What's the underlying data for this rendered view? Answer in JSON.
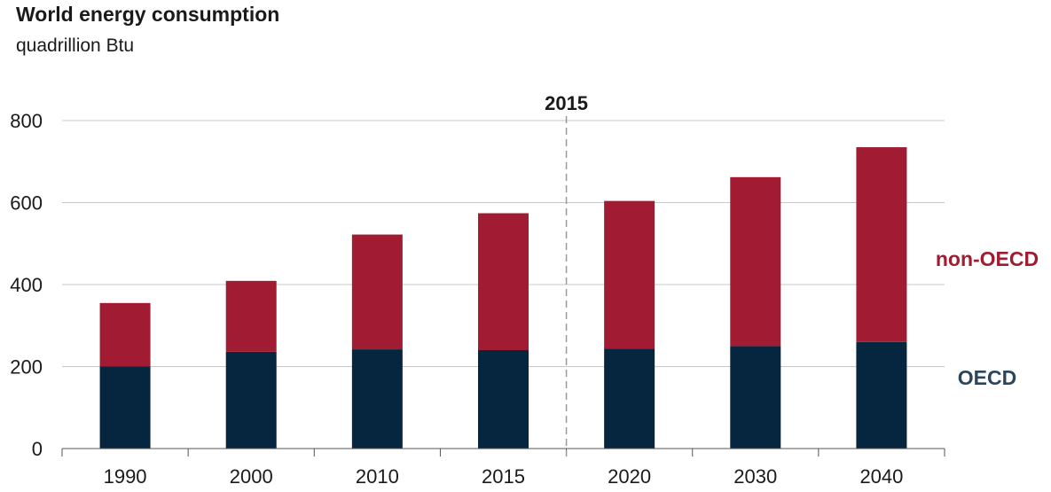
{
  "chart_data": {
    "type": "bar",
    "stacked": true,
    "title": "World energy consumption",
    "subtitle": "quadrillion Btu",
    "categories": [
      "1990",
      "2000",
      "2010",
      "2015",
      "2020",
      "2030",
      "2040"
    ],
    "series": [
      {
        "name": "OECD",
        "color": "#05263e",
        "values": [
          200,
          236,
          242,
          240,
          244,
          250,
          260
        ]
      },
      {
        "name": "non-OECD",
        "color": "#a11c32",
        "values": [
          155,
          173,
          280,
          334,
          360,
          412,
          475
        ]
      }
    ],
    "ylim": [
      0,
      800
    ],
    "yticks": [
      0,
      200,
      400,
      600,
      800
    ],
    "grid": true,
    "marker": {
      "label": "2015",
      "between": [
        "2015",
        "2020"
      ]
    }
  }
}
